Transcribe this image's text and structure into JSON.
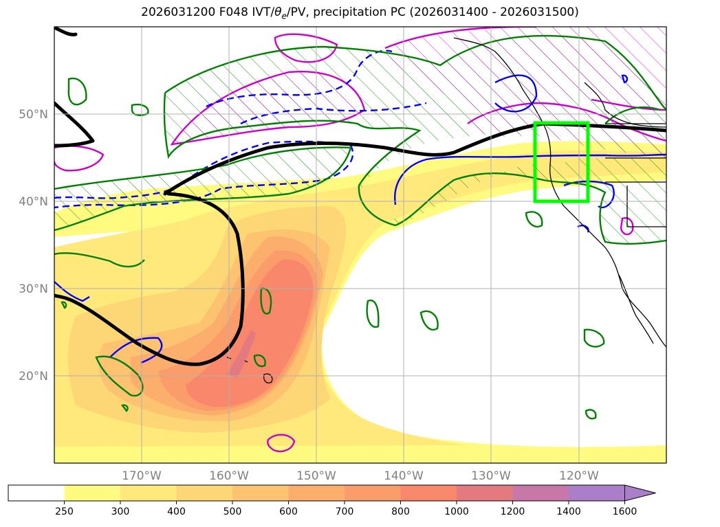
{
  "title": {
    "prefix": "2026031200 F048 IVT/",
    "theta": "θ",
    "theta_sub": "e",
    "suffix": "/PV, precipitation PC (2026031400 - 2026031500)"
  },
  "map": {
    "lon_range": [
      -180,
      -110
    ],
    "lat_range": [
      10,
      60
    ],
    "lon_ticks": [
      "170°W",
      "160°W",
      "150°W",
      "140°W",
      "130°W",
      "120°W"
    ],
    "lat_ticks": [
      "50°N",
      "40°N",
      "30°N",
      "20°N"
    ],
    "grid": true,
    "target_box": {
      "lon": [
        -125,
        -119
      ],
      "lat": [
        40,
        49
      ],
      "color": "#00ff00"
    }
  },
  "legend_colors": {
    "ivt_fill": [
      "#ffffff",
      "#fffb80",
      "#fee97a",
      "#fdd675",
      "#fdc371",
      "#fcaf6c",
      "#fb9c6b",
      "#f9876c",
      "#e27a7f",
      "#c778a8",
      "#aa7ec8"
    ],
    "theta_e": "#0000ff",
    "pv": "#cc00cc",
    "precip": "#008000",
    "front_line": "#000000"
  },
  "colorbar": {
    "ticks": [
      "250",
      "300",
      "400",
      "500",
      "600",
      "700",
      "800",
      "1000",
      "1200",
      "1400",
      "1600"
    ],
    "extend": "max"
  }
}
